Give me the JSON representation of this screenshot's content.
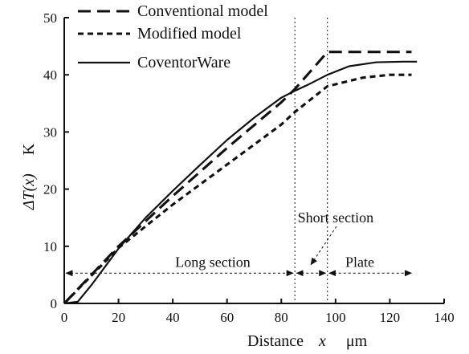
{
  "chart_data": {
    "type": "line",
    "xlabel": {
      "text": "Distance",
      "var": "x",
      "unit": "μm"
    },
    "ylabel": {
      "text": "ΔT(x)",
      "unit": "K"
    },
    "xlim": [
      0,
      140
    ],
    "ylim": [
      0,
      50
    ],
    "x_ticks": [
      0,
      20,
      40,
      60,
      80,
      100,
      120,
      140
    ],
    "y_ticks": [
      0,
      10,
      20,
      30,
      40,
      50
    ],
    "legend_position": "top-left",
    "series": [
      {
        "name": "Conventional model",
        "style": "long-dash",
        "points": [
          [
            0,
            0
          ],
          [
            20,
            10
          ],
          [
            40,
            18.8
          ],
          [
            60,
            27.2
          ],
          [
            80,
            35.2
          ],
          [
            85,
            37.5
          ],
          [
            97,
            44
          ],
          [
            110,
            44
          ],
          [
            128,
            44
          ]
        ]
      },
      {
        "name": "Modified model",
        "style": "short-dash",
        "points": [
          [
            0,
            0
          ],
          [
            20,
            9.7
          ],
          [
            40,
            17.3
          ],
          [
            60,
            24.3
          ],
          [
            80,
            31.3
          ],
          [
            85,
            33.5
          ],
          [
            97,
            38
          ],
          [
            110,
            39.5
          ],
          [
            120,
            40
          ],
          [
            128,
            40
          ]
        ]
      },
      {
        "name": "CoventorWare",
        "style": "solid",
        "points": [
          [
            0,
            0
          ],
          [
            5,
            0.3
          ],
          [
            10,
            3.2
          ],
          [
            20,
            9.6
          ],
          [
            30,
            15
          ],
          [
            40,
            19.7
          ],
          [
            50,
            24.2
          ],
          [
            60,
            28.6
          ],
          [
            70,
            32.5
          ],
          [
            80,
            36
          ],
          [
            85,
            37.2
          ],
          [
            90,
            38.3
          ],
          [
            97,
            40
          ],
          [
            105,
            41.5
          ],
          [
            115,
            42.2
          ],
          [
            125,
            42.3
          ],
          [
            130,
            42.3
          ]
        ]
      }
    ],
    "vertical_lines": [
      85,
      97
    ],
    "annotations": {
      "long_section": {
        "text": "Long section",
        "x_from": 0,
        "x_to": 85,
        "y": 5.3
      },
      "plate": {
        "text": "Plate",
        "x_from": 97,
        "x_to": 128,
        "y": 5.3
      },
      "short_section": {
        "text": "Short section",
        "x_from": 85,
        "x_to": 97,
        "y": 5.3,
        "label_x": 100,
        "label_y": 14.2
      }
    }
  }
}
